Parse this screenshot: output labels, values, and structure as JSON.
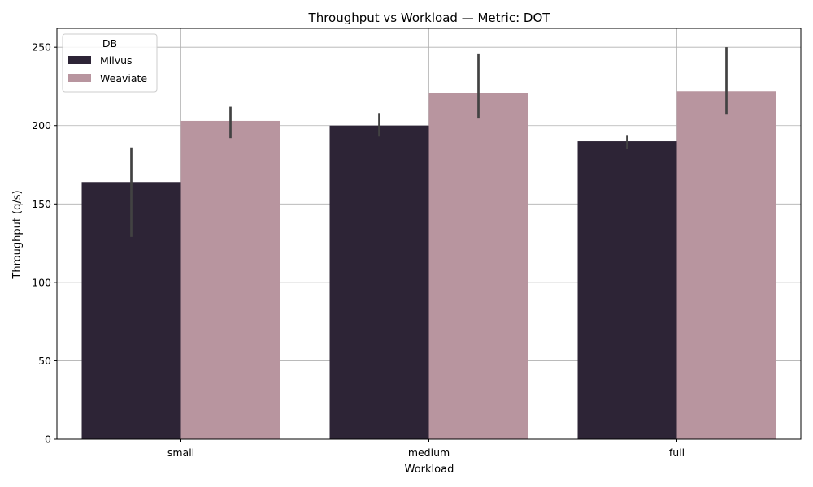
{
  "chart_data": {
    "type": "bar",
    "title": "Throughput vs Workload — Metric: DOT",
    "xlabel": "Workload",
    "ylabel": "Throughput (q/s)",
    "categories": [
      "small",
      "medium",
      "full"
    ],
    "ylim": [
      0,
      262
    ],
    "yticks": [
      0,
      50,
      100,
      150,
      200,
      250
    ],
    "grid": true,
    "legend": {
      "title": "DB",
      "position": "top-left"
    },
    "series": [
      {
        "name": "Milvus",
        "color": "#2d2436",
        "values": [
          164,
          200,
          190
        ],
        "error_low": [
          129,
          193,
          185
        ],
        "error_high": [
          186,
          208,
          194
        ]
      },
      {
        "name": "Weaviate",
        "color": "#b8959f",
        "values": [
          203,
          221,
          222
        ],
        "error_low": [
          192,
          205,
          207
        ],
        "error_high": [
          212,
          246,
          250
        ]
      }
    ]
  }
}
